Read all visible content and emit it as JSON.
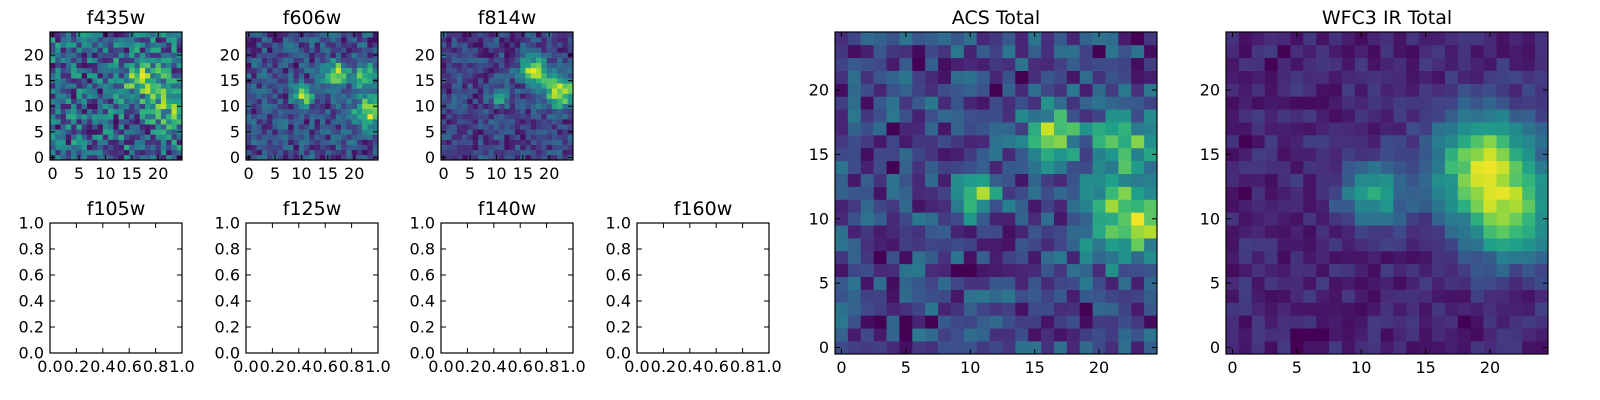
{
  "chart_data": [
    {
      "id": "f435w",
      "type": "heatmap",
      "title": "f435w",
      "xlim": [
        -0.5,
        24.5
      ],
      "ylim": [
        -0.5,
        24.5
      ],
      "xticks": [
        "0",
        "5",
        "10",
        "15",
        "20"
      ],
      "yticks": [
        "0",
        "5",
        "10",
        "15",
        "20"
      ],
      "colormap": "viridis",
      "grid": false,
      "noise_level": 0.6,
      "sources": [
        {
          "x": 17,
          "y": 15.5,
          "sigma": 2.5,
          "amp": 0.45
        },
        {
          "x": 22,
          "y": 10,
          "sigma": 2.5,
          "amp": 0.35
        }
      ]
    },
    {
      "id": "f606w",
      "type": "heatmap",
      "title": "f606w",
      "xlim": [
        -0.5,
        24.5
      ],
      "ylim": [
        -0.5,
        24.5
      ],
      "xticks": [
        "0",
        "5",
        "10",
        "15",
        "20"
      ],
      "yticks": [
        "0",
        "5",
        "10",
        "15",
        "20"
      ],
      "colormap": "viridis",
      "grid": false,
      "noise_level": 0.5,
      "sources": [
        {
          "x": 10.5,
          "y": 12,
          "sigma": 1.3,
          "amp": 0.75
        },
        {
          "x": 16.5,
          "y": 16.5,
          "sigma": 1.5,
          "amp": 0.85
        },
        {
          "x": 22,
          "y": 16,
          "sigma": 1.6,
          "amp": 0.7
        },
        {
          "x": 23,
          "y": 9,
          "sigma": 2.2,
          "amp": 0.85
        }
      ]
    },
    {
      "id": "f814w",
      "type": "heatmap",
      "title": "f814w",
      "xlim": [
        -0.5,
        24.5
      ],
      "ylim": [
        -0.5,
        24.5
      ],
      "xticks": [
        "0",
        "5",
        "10",
        "15",
        "20"
      ],
      "yticks": [
        "0",
        "5",
        "10",
        "15",
        "20"
      ],
      "colormap": "viridis",
      "grid": false,
      "noise_level": 0.45,
      "sources": [
        {
          "x": 10.5,
          "y": 12,
          "sigma": 1.3,
          "amp": 0.6
        },
        {
          "x": 17,
          "y": 17,
          "sigma": 1.8,
          "amp": 0.95
        },
        {
          "x": 22,
          "y": 13,
          "sigma": 2.3,
          "amp": 0.95
        }
      ]
    },
    {
      "id": "f105w",
      "type": "heatmap",
      "title": "f105w",
      "empty": true,
      "xlim": [
        0,
        1
      ],
      "ylim": [
        0,
        1
      ],
      "xticks": [
        "0.0",
        "0.2",
        "0.4",
        "0.6",
        "0.8",
        "1.0"
      ],
      "yticks": [
        "0.0",
        "0.2",
        "0.4",
        "0.6",
        "0.8",
        "1.0"
      ]
    },
    {
      "id": "f125w",
      "type": "heatmap",
      "title": "f125w",
      "empty": true,
      "xlim": [
        0,
        1
      ],
      "ylim": [
        0,
        1
      ],
      "xticks": [
        "0.0",
        "0.2",
        "0.4",
        "0.6",
        "0.8",
        "1.0"
      ],
      "yticks": [
        "0.0",
        "0.2",
        "0.4",
        "0.6",
        "0.8",
        "1.0"
      ]
    },
    {
      "id": "f140w",
      "type": "heatmap",
      "title": "f140w",
      "empty": true,
      "xlim": [
        0,
        1
      ],
      "ylim": [
        0,
        1
      ],
      "xticks": [
        "0.0",
        "0.2",
        "0.4",
        "0.6",
        "0.8",
        "1.0"
      ],
      "yticks": [
        "0.0",
        "0.2",
        "0.4",
        "0.6",
        "0.8",
        "1.0"
      ]
    },
    {
      "id": "f160w",
      "type": "heatmap",
      "title": "f160w",
      "empty": true,
      "xlim": [
        0,
        1
      ],
      "ylim": [
        0,
        1
      ],
      "xticks": [
        "0.0",
        "0.2",
        "0.4",
        "0.6",
        "0.8",
        "1.0"
      ],
      "yticks": [
        "0.0",
        "0.2",
        "0.4",
        "0.6",
        "0.8",
        "1.0"
      ]
    },
    {
      "id": "acs-total",
      "type": "heatmap",
      "title": "ACS Total",
      "xlim": [
        -0.5,
        24.5
      ],
      "ylim": [
        -0.5,
        24.5
      ],
      "xticks": [
        "0",
        "5",
        "10",
        "15",
        "20"
      ],
      "yticks": [
        "0",
        "5",
        "10",
        "15",
        "20"
      ],
      "colormap": "viridis",
      "grid": false,
      "noise_level": 0.4,
      "sources": [
        {
          "x": 10.5,
          "y": 12,
          "sigma": 1.2,
          "amp": 0.6
        },
        {
          "x": 16.5,
          "y": 16.5,
          "sigma": 1.4,
          "amp": 0.65
        },
        {
          "x": 22,
          "y": 16,
          "sigma": 1.5,
          "amp": 0.6
        },
        {
          "x": 22.5,
          "y": 10,
          "sigma": 2.2,
          "amp": 0.75
        }
      ],
      "dark_pixels": [
        [
          3,
          2
        ],
        [
          5,
          1
        ],
        [
          5,
          2
        ],
        [
          9,
          6
        ],
        [
          10,
          6
        ],
        [
          3,
          7
        ],
        [
          4,
          14
        ],
        [
          4,
          17
        ],
        [
          12,
          20
        ],
        [
          14,
          21
        ],
        [
          6,
          22
        ],
        [
          20,
          23
        ],
        [
          23,
          24
        ],
        [
          7,
          2
        ],
        [
          19,
          3
        ]
      ]
    },
    {
      "id": "wfc3-ir-total",
      "type": "heatmap",
      "title": "WFC3 IR Total",
      "xlim": [
        -0.5,
        24.5
      ],
      "ylim": [
        -0.5,
        24.5
      ],
      "xticks": [
        "0",
        "5",
        "10",
        "15",
        "20"
      ],
      "yticks": [
        "0",
        "5",
        "10",
        "15",
        "20"
      ],
      "colormap": "viridis",
      "grid": false,
      "noise_level": 0.15,
      "base": 0.14,
      "sources": [
        {
          "x": 11,
          "y": 12,
          "sigma": 1.8,
          "amp": 0.45
        },
        {
          "x": 19.5,
          "y": 14.5,
          "sigma": 2.8,
          "amp": 0.7
        },
        {
          "x": 21.5,
          "y": 10,
          "sigma": 2.5,
          "amp": 0.55
        }
      ],
      "dark_pixels": [
        [
          6,
          1
        ],
        [
          5,
          1
        ],
        [
          7,
          1
        ],
        [
          5,
          0
        ],
        [
          3,
          22
        ],
        [
          4,
          23
        ],
        [
          1,
          16
        ],
        [
          1,
          12
        ],
        [
          18,
          2
        ]
      ]
    }
  ]
}
